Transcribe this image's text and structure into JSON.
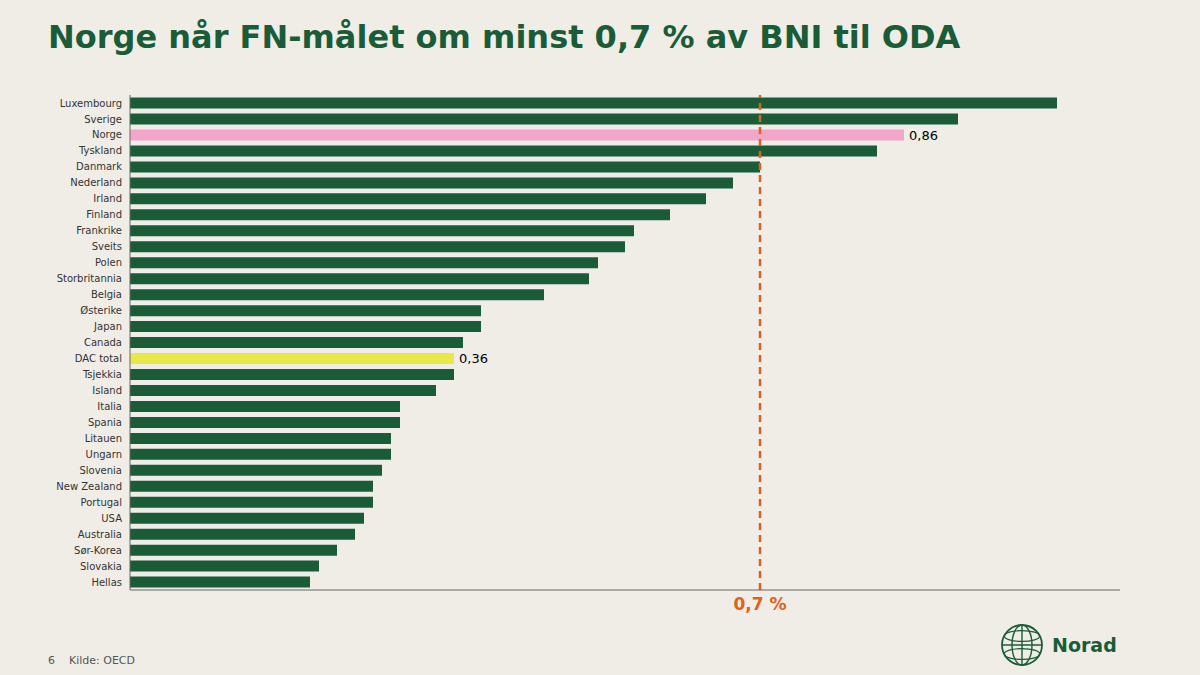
{
  "chart_data": {
    "type": "bar",
    "orientation": "horizontal",
    "title": "Norge når FN-målet om minst 0,7 % av BNI til ODA",
    "title_color": "#1a5c38",
    "background_color": "#f0ede6",
    "categories": [
      "Luxembourg",
      "Sverige",
      "Norge",
      "Tyskland",
      "Danmark",
      "Nederland",
      "Irland",
      "Finland",
      "Frankrike",
      "Sveits",
      "Polen",
      "Storbritannia",
      "Belgia",
      "Østerike",
      "Japan",
      "Canada",
      "DAC total",
      "Tsjekkia",
      "Island",
      "Italia",
      "Spania",
      "Litauen",
      "Ungarn",
      "Slovenia",
      "New Zealand",
      "Portugal",
      "USA",
      "Australia",
      "Sør-Korea",
      "Slovakia",
      "Hellas"
    ],
    "values": [
      1.03,
      0.92,
      0.86,
      0.83,
      0.7,
      0.67,
      0.64,
      0.6,
      0.56,
      0.55,
      0.52,
      0.51,
      0.46,
      0.39,
      0.39,
      0.37,
      0.36,
      0.36,
      0.34,
      0.3,
      0.3,
      0.29,
      0.29,
      0.28,
      0.27,
      0.27,
      0.26,
      0.25,
      0.23,
      0.21,
      0.2
    ],
    "value_labels": [
      null,
      null,
      "0,86",
      null,
      null,
      null,
      null,
      null,
      null,
      null,
      null,
      null,
      null,
      null,
      null,
      null,
      "0,36",
      null,
      null,
      null,
      null,
      null,
      null,
      null,
      null,
      null,
      null,
      null,
      null,
      null,
      null
    ],
    "colors": [
      "#1a5c38",
      "#1a5c38",
      "#f4a6c8",
      "#1a5c38",
      "#1a5c38",
      "#1a5c38",
      "#1a5c38",
      "#1a5c38",
      "#1a5c38",
      "#1a5c38",
      "#1a5c38",
      "#1a5c38",
      "#1a5c38",
      "#1a5c38",
      "#1a5c38",
      "#1a5c38",
      "#e8e84a",
      "#1a5c38",
      "#1a5c38",
      "#1a5c38",
      "#1a5c38",
      "#1a5c38",
      "#1a5c38",
      "#1a5c38",
      "#1a5c38",
      "#1a5c38",
      "#1a5c38",
      "#1a5c38",
      "#1a5c38",
      "#1a5c38",
      "#1a5c38"
    ],
    "xlim": [
      0,
      1.1
    ],
    "grid": false,
    "tick_labels": "y",
    "annotations": [
      {
        "x": 0.7,
        "label": "0,7 %",
        "color": "#e06020",
        "line_style": "dashed"
      }
    ],
    "source": "6    Kilde: OECD",
    "logo_text": "Norad",
    "logo_color": "#1a5c38"
  }
}
